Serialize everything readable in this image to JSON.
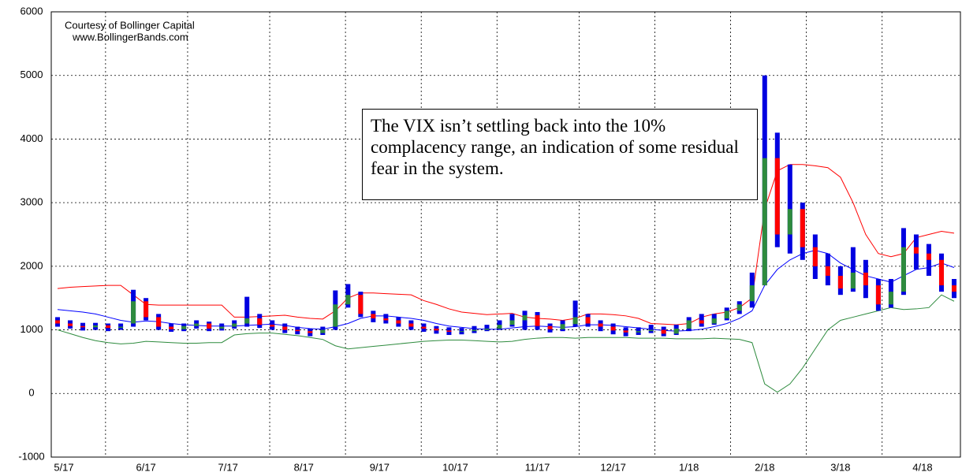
{
  "chart_data": {
    "type": "candlestick",
    "credits": [
      "Courtesy of Bollinger Capital",
      "www.BollingerBands.com"
    ],
    "annotation": "The VIX isn’t settling back into the 10% complacency range, an indication of some residual fear in the system.",
    "ylim": [
      -1000,
      6000
    ],
    "yticks": [
      -1000,
      0,
      1000,
      2000,
      3000,
      4000,
      5000,
      6000
    ],
    "xlim": [
      -0.5,
      71.5
    ],
    "xticks": [
      {
        "value": 0.5,
        "label": "5/17"
      },
      {
        "value": 7,
        "label": "6/17"
      },
      {
        "value": 13.5,
        "label": "7/17"
      },
      {
        "value": 19.5,
        "label": "8/17"
      },
      {
        "value": 25.5,
        "label": "9/17"
      },
      {
        "value": 31.5,
        "label": "10/17"
      },
      {
        "value": 38,
        "label": "11/17"
      },
      {
        "value": 44,
        "label": "12/17"
      },
      {
        "value": 50,
        "label": "1/18"
      },
      {
        "value": 56,
        "label": "2/18"
      },
      {
        "value": 62,
        "label": "3/18"
      },
      {
        "value": 68.5,
        "label": "4/18"
      }
    ],
    "grid": true,
    "colors": {
      "range": "#0000e0",
      "up": "#2e8b3e",
      "down": "#ff0000"
    },
    "open": [
      1150,
      1100,
      1060,
      1040,
      1070,
      1030,
      1100,
      1450,
      1200,
      1050,
      1010,
      1060,
      1100,
      1020,
      1050,
      1100,
      1180,
      1080,
      1050,
      1000,
      980,
      950,
      1050,
      1400,
      1550,
      1250,
      1180,
      1150,
      1100,
      1050,
      1020,
      990,
      970,
      980,
      1000,
      1020,
      1080,
      1150,
      1230,
      1060,
      1010,
      1090,
      1200,
      1100,
      1050,
      990,
      960,
      980,
      1000,
      940,
      1020,
      1150,
      1100,
      1180,
      1300,
      1450,
      1700,
      3700,
      2500,
      2900,
      2300,
      2000,
      1850,
      1650,
      1900,
      1700,
      1400,
      1600,
      2300,
      2200,
      2100,
      1700
    ],
    "high": [
      1200,
      1150,
      1110,
      1110,
      1100,
      1100,
      1630,
      1500,
      1250,
      1100,
      1100,
      1150,
      1130,
      1100,
      1150,
      1520,
      1250,
      1150,
      1100,
      1050,
      1020,
      1050,
      1620,
      1720,
      1600,
      1300,
      1250,
      1200,
      1150,
      1100,
      1060,
      1040,
      1030,
      1060,
      1080,
      1150,
      1250,
      1300,
      1280,
      1100,
      1150,
      1460,
      1250,
      1150,
      1100,
      1040,
      1040,
      1080,
      1050,
      1080,
      1200,
      1250,
      1250,
      1350,
      1450,
      1900,
      5000,
      4100,
      3600,
      3000,
      2500,
      2200,
      2000,
      2300,
      2100,
      1800,
      1800,
      2600,
      2500,
      2350,
      2200,
      1800
    ],
    "low": [
      1050,
      1020,
      990,
      1000,
      980,
      1000,
      1050,
      1150,
      1000,
      970,
      980,
      1020,
      980,
      990,
      1020,
      1050,
      1030,
      1000,
      950,
      930,
      900,
      920,
      1000,
      1350,
      1200,
      1120,
      1100,
      1050,
      1000,
      970,
      940,
      920,
      930,
      950,
      980,
      1000,
      1050,
      1000,
      1000,
      960,
      980,
      1050,
      1050,
      980,
      930,
      900,
      920,
      950,
      900,
      920,
      980,
      1050,
      1080,
      1150,
      1250,
      1350,
      1700,
      2300,
      2200,
      2100,
      1800,
      1700,
      1550,
      1600,
      1500,
      1300,
      1350,
      1550,
      1950,
      1850,
      1600,
      1500
    ],
    "close": [
      1100,
      1060,
      1040,
      1070,
      1030,
      1050,
      1450,
      1200,
      1050,
      1010,
      1060,
      1100,
      1020,
      1050,
      1100,
      1180,
      1080,
      1050,
      1000,
      980,
      950,
      1000,
      1400,
      1550,
      1250,
      1180,
      1150,
      1100,
      1050,
      1020,
      990,
      970,
      980,
      1000,
      1020,
      1080,
      1150,
      1230,
      1060,
      1010,
      1090,
      1200,
      1100,
      1050,
      990,
      960,
      980,
      1000,
      940,
      1020,
      1150,
      1100,
      1180,
      1300,
      1400,
      1700,
      3700,
      2500,
      2900,
      2300,
      2000,
      1850,
      1650,
      1900,
      1700,
      1400,
      1600,
      2300,
      2200,
      2100,
      1700,
      1600
    ],
    "series": [
      {
        "color": "#ff0000",
        "values": [
          1650,
          1670,
          1680,
          1690,
          1700,
          1700,
          1550,
          1400,
          1390,
          1390,
          1390,
          1390,
          1390,
          1390,
          1200,
          1200,
          1210,
          1220,
          1230,
          1200,
          1180,
          1170,
          1300,
          1500,
          1580,
          1580,
          1570,
          1560,
          1550,
          1460,
          1400,
          1330,
          1280,
          1260,
          1240,
          1250,
          1260,
          1200,
          1180,
          1170,
          1150,
          1180,
          1250,
          1250,
          1240,
          1220,
          1180,
          1100,
          1090,
          1080,
          1100,
          1200,
          1250,
          1280,
          1350,
          1500,
          2900,
          3500,
          3600,
          3600,
          3580,
          3550,
          3400,
          3000,
          2500,
          2200,
          2150,
          2200,
          2450,
          2500,
          2550,
          2520
        ]
      },
      {
        "color": "#0000ff",
        "values": [
          1320,
          1300,
          1280,
          1250,
          1200,
          1150,
          1120,
          1140,
          1130,
          1100,
          1080,
          1070,
          1060,
          1060,
          1060,
          1070,
          1080,
          1090,
          1070,
          1040,
          1020,
          1010,
          1050,
          1100,
          1180,
          1220,
          1220,
          1200,
          1180,
          1150,
          1100,
          1060,
          1040,
          1020,
          1010,
          1010,
          1030,
          1050,
          1060,
          1050,
          1040,
          1050,
          1080,
          1080,
          1070,
          1050,
          1030,
          1010,
          990,
          980,
          990,
          1010,
          1050,
          1100,
          1180,
          1300,
          1700,
          1950,
          2100,
          2200,
          2250,
          2200,
          2050,
          1950,
          1850,
          1800,
          1750,
          1850,
          1950,
          1980,
          2050,
          1980
        ]
      },
      {
        "color": "#2e8b3e",
        "values": [
          1000,
          940,
          880,
          830,
          800,
          780,
          790,
          820,
          810,
          800,
          790,
          790,
          800,
          800,
          920,
          940,
          950,
          950,
          930,
          910,
          880,
          850,
          750,
          700,
          720,
          740,
          760,
          780,
          800,
          820,
          830,
          840,
          840,
          830,
          820,
          810,
          820,
          850,
          870,
          880,
          880,
          870,
          880,
          880,
          880,
          880,
          870,
          870,
          870,
          860,
          860,
          860,
          870,
          860,
          850,
          800,
          150,
          20,
          150,
          400,
          700,
          1000,
          1150,
          1200,
          1250,
          1300,
          1350,
          1320,
          1330,
          1350,
          1550,
          1450
        ]
      }
    ]
  }
}
